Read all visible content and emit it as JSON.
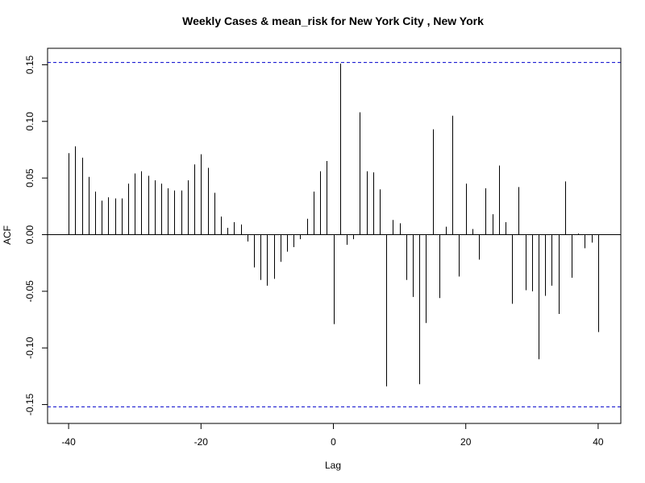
{
  "chart_data": {
    "type": "bar",
    "title": "Weekly Cases & mean_risk for New York City , New York",
    "xlabel": "Lag",
    "ylabel": "ACF",
    "xlim": [
      -40,
      40
    ],
    "ylim": [
      -0.155,
      0.155
    ],
    "x_ticks": [
      -40,
      -20,
      0,
      20,
      40
    ],
    "y_ticks": [
      -0.15,
      -0.1,
      -0.05,
      0.0,
      0.05,
      0.1,
      0.15
    ],
    "y_tick_labels": [
      "-0.15",
      "-0.10",
      "-0.05",
      "0.00",
      "0.05",
      "0.10",
      "0.15"
    ],
    "confidence_bound": 0.152,
    "colors": {
      "bars": "#000000",
      "confidence": "#0000cc",
      "zero_line": "#000000"
    },
    "grid": false,
    "lags": [
      -40,
      -39,
      -38,
      -37,
      -36,
      -35,
      -34,
      -33,
      -32,
      -31,
      -30,
      -29,
      -28,
      -27,
      -26,
      -25,
      -24,
      -23,
      -22,
      -21,
      -20,
      -19,
      -18,
      -17,
      -16,
      -15,
      -14,
      -13,
      -12,
      -11,
      -10,
      -9,
      -8,
      -7,
      -6,
      -5,
      -4,
      -3,
      -2,
      -1,
      0,
      1,
      2,
      3,
      4,
      5,
      6,
      7,
      8,
      9,
      10,
      11,
      12,
      13,
      14,
      15,
      16,
      17,
      18,
      19,
      20,
      21,
      22,
      23,
      24,
      25,
      26,
      27,
      28,
      29,
      30,
      31,
      32,
      33,
      34,
      35,
      36,
      37,
      38,
      39,
      40
    ],
    "values": [
      0.072,
      0.078,
      0.068,
      0.051,
      0.038,
      0.03,
      0.033,
      0.032,
      0.032,
      0.045,
      0.054,
      0.056,
      0.052,
      0.048,
      0.045,
      0.041,
      0.039,
      0.039,
      0.048,
      0.062,
      0.071,
      0.059,
      0.037,
      0.016,
      0.006,
      0.011,
      0.009,
      -0.006,
      -0.029,
      -0.04,
      -0.045,
      -0.039,
      -0.024,
      -0.015,
      -0.011,
      -0.004,
      0.014,
      0.038,
      0.056,
      0.065,
      -0.079,
      0.151,
      -0.009,
      -0.004,
      0.108,
      0.056,
      0.055,
      0.04,
      -0.134,
      0.013,
      0.01,
      -0.04,
      -0.055,
      -0.132,
      -0.078,
      0.093,
      -0.056,
      0.007,
      0.105,
      -0.037,
      0.045,
      0.005,
      -0.022,
      0.041,
      0.018,
      0.061,
      0.011,
      -0.061,
      0.042,
      -0.049,
      -0.05,
      -0.11,
      -0.054,
      -0.045,
      -0.07,
      0.047,
      -0.038,
      0.001,
      -0.012,
      -0.007,
      -0.086
    ]
  }
}
